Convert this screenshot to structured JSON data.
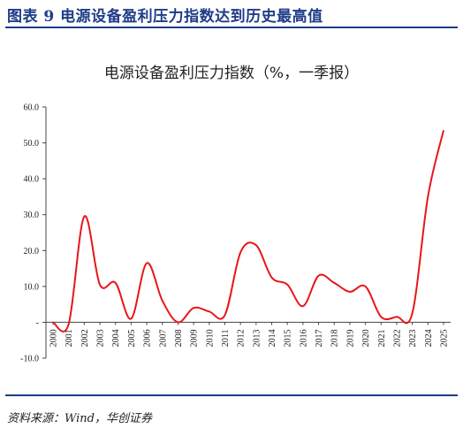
{
  "figure": {
    "title": "图表 9    电源设备盈利压力指数达到历史最高值",
    "source": "资料来源：Wind，华创证券"
  },
  "colors": {
    "accent": "#1f3c88",
    "series": "#e8161a",
    "axis": "#444444"
  },
  "chart_data": {
    "type": "line",
    "title": "电源设备盈利压力指数（%，一季报）",
    "xlabel": "",
    "ylabel": "",
    "ylim": [
      -10,
      60
    ],
    "yticks": [
      "-10.0",
      "-",
      "10.0",
      "20.0",
      "30.0",
      "40.0",
      "50.0",
      "60.0"
    ],
    "grid": false,
    "legend": "none",
    "categories": [
      "2000",
      "2001",
      "2002",
      "2003",
      "2004",
      "2005",
      "2006",
      "2007",
      "2008",
      "2009",
      "2010",
      "2011",
      "2012",
      "2013",
      "2014",
      "2015",
      "2016",
      "2017",
      "2018",
      "2019",
      "2020",
      "2021",
      "2022",
      "2023",
      "2024",
      "2025"
    ],
    "series": [
      {
        "values": [
          0.0,
          -0.5,
          29.5,
          10.5,
          11.0,
          1.0,
          16.5,
          6.0,
          0.0,
          4.0,
          3.0,
          2.0,
          19.5,
          21.5,
          12.5,
          10.5,
          4.5,
          13.0,
          11.0,
          8.5,
          10.0,
          1.5,
          1.5,
          2.5,
          35.0,
          53.5
        ]
      }
    ]
  }
}
